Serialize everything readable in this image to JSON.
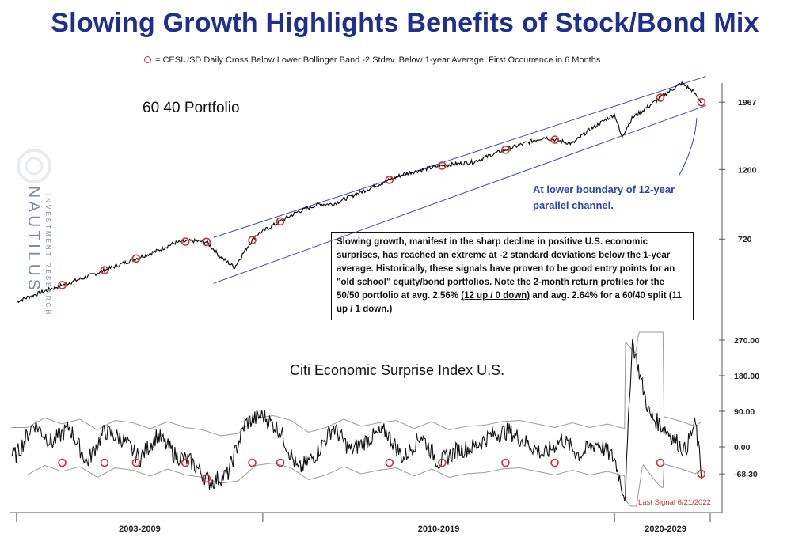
{
  "title": "Slowing Growth Highlights Benefits of Stock/Bond Mix",
  "legend_text": "= CESIUSD Daily Cross Below Lower Bollinger Band -2 Stdev. Below 1-year Average, First Occurrence in 6 Months",
  "watermark": {
    "name": "NAUTILUS",
    "sub": "INVESTMENT RESEARCH"
  },
  "top_panel": {
    "label": "60 40 Portfolio"
  },
  "bottom_panel": {
    "label": "Citi Economic Surprise Index U.S."
  },
  "annotation": {
    "line1": "At lower boundary of 12-year",
    "line2": "parallel channel."
  },
  "callout": {
    "text": "Slowing growth, manifest in the sharp decline in positive U.S. economic surprises, has reached an extreme at -2 standard deviations below the 1-year average.  Historically, these signals have proven to be good entry points for an \"old school\" equity/bond portfolios. Note the 2-month return profiles for the 50/50 portfolio at avg. 2.56% ",
    "underlined": "(12 up / 0 down)",
    "tail": " and avg. 2.64% for a 60/40 split (11 up / 1 down.)"
  },
  "last_signal": "Last Signal 6/21/2022",
  "colors": {
    "title": "#1f2f8f",
    "signal": "#d23030",
    "channel": "#3a4fb8",
    "annotation": "#2b46a8",
    "band": "#9a9a9a"
  },
  "chart_data": [
    {
      "type": "line",
      "name": "60 40 Portfolio",
      "x": [
        2003.0,
        2004.0,
        2005.0,
        2006.0,
        2007.0,
        2007.5,
        2008.0,
        2008.4,
        2008.8,
        2009.2,
        2009.8,
        2010.5,
        2011.0,
        2011.6,
        2012.0,
        2013.0,
        2014.0,
        2015.0,
        2016.0,
        2017.0,
        2018.0,
        2018.8,
        2019.2,
        2020.0,
        2020.2,
        2020.5,
        2021.0,
        2021.9,
        2022.2,
        2022.47
      ],
      "y": [
        455,
        500,
        545,
        600,
        660,
        700,
        710,
        705,
        630,
        585,
        740,
        820,
        880,
        930,
        930,
        1040,
        1160,
        1230,
        1270,
        1400,
        1520,
        1450,
        1580,
        1800,
        1520,
        1750,
        1920,
        2260,
        2150,
        1967
      ],
      "yticks": [
        720,
        1200,
        1967
      ],
      "ytick_labels": [
        "720",
        "1200",
        "1967"
      ],
      "ylim": [
        420,
        2400
      ],
      "scale": "log"
    },
    {
      "type": "line",
      "name": "Citi Economic Surprise Index U.S.",
      "x": [
        2003.0,
        2003.5,
        2004.0,
        2004.5,
        2005.0,
        2005.5,
        2006.0,
        2006.5,
        2007.0,
        2007.5,
        2008.0,
        2008.5,
        2009.0,
        2009.5,
        2010.0,
        2010.5,
        2011.0,
        2011.5,
        2012.0,
        2012.5,
        2013.0,
        2013.5,
        2014.0,
        2014.5,
        2015.0,
        2015.5,
        2016.0,
        2016.5,
        2017.0,
        2017.5,
        2018.0,
        2018.5,
        2019.0,
        2019.5,
        2020.0,
        2020.3,
        2020.5,
        2020.8,
        2021.0,
        2021.5,
        2022.0,
        2022.3,
        2022.47
      ],
      "y": [
        -20,
        60,
        10,
        50,
        -40,
        40,
        20,
        -30,
        30,
        -20,
        -40,
        -90,
        -70,
        60,
        80,
        40,
        -60,
        -20,
        50,
        -10,
        20,
        40,
        -30,
        30,
        -40,
        -10,
        0,
        30,
        40,
        10,
        -20,
        20,
        -20,
        10,
        -30,
        -130,
        270,
        150,
        80,
        40,
        -10,
        60,
        -68.3
      ],
      "yticks": [
        -68.3,
        0.0,
        90.0,
        180.0,
        270.0
      ],
      "ytick_labels": [
        "-68.30",
        "0.00",
        "90.00",
        "180.00",
        "270.00"
      ],
      "ylim": [
        -150,
        300
      ]
    }
  ],
  "signals": {
    "dates": [
      2004.3,
      2005.5,
      2006.4,
      2007.8,
      2008.4,
      2009.7,
      2010.5,
      2013.6,
      2015.1,
      2016.9,
      2018.3,
      2021.3,
      2022.47
    ]
  },
  "x_axis": {
    "period_labels": [
      "2003-2009",
      "2010-2019",
      "2020-2029"
    ],
    "xlim": [
      2002.8,
      2022.9
    ]
  }
}
